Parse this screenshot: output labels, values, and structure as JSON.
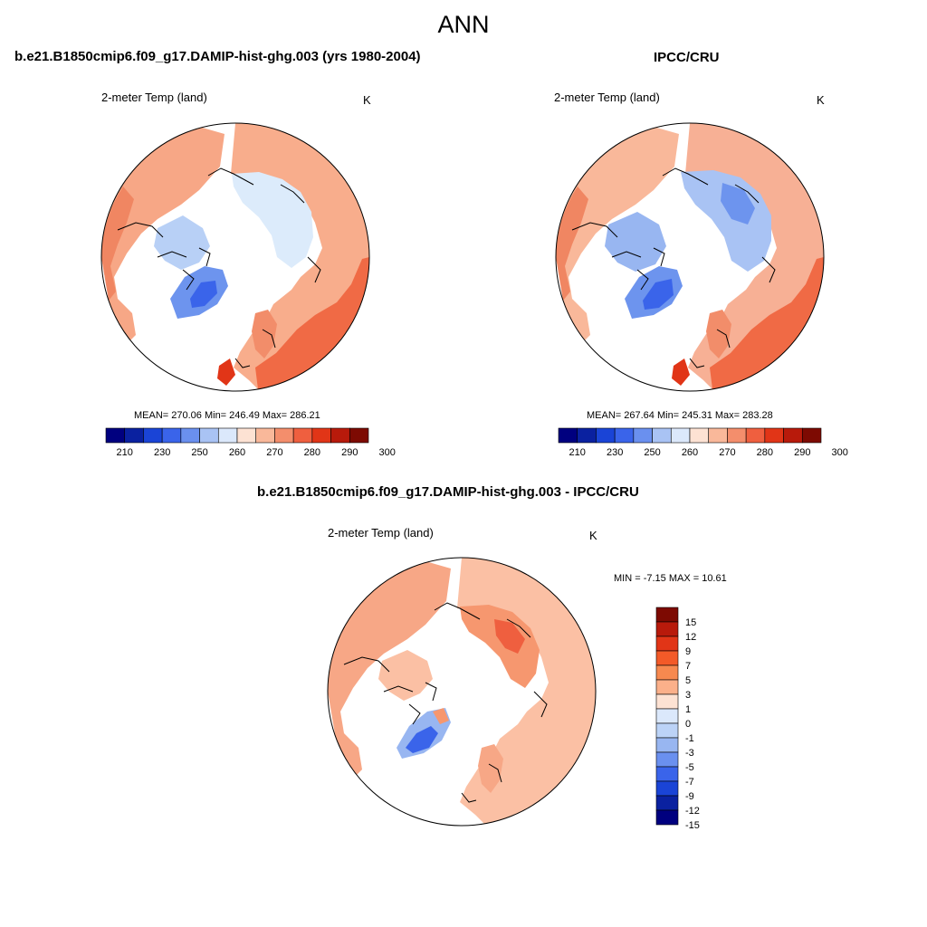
{
  "figure": {
    "title": "ANN"
  },
  "panels": {
    "model": {
      "title": "b.e21.B1850cmip6.f09_g17.DAMIP-hist-ghg.003 (yrs 1980-2004)",
      "variable": "2-meter Temp (land)",
      "units": "K",
      "stats": "MEAN= 270.06  Min= 246.49  Max= 286.21"
    },
    "obs": {
      "title": "IPCC/CRU",
      "variable": "2-meter Temp (land)",
      "units": "K",
      "stats": "MEAN= 267.64  Min= 245.31  Max= 283.28"
    },
    "diff": {
      "title": "b.e21.B1850cmip6.f09_g17.DAMIP-hist-ghg.003 - IPCC/CRU",
      "variable": "2-meter Temp (land)",
      "units": "K",
      "stats": "MIN =  -7.15 MAX =  10.61"
    }
  },
  "colorbars": {
    "abs": {
      "colors": [
        "#00007f",
        "#0a21a0",
        "#1a44d6",
        "#3a64ea",
        "#6a90ef",
        "#a9c3f4",
        "#dbe8fb",
        "#fde2d3",
        "#f9b89a",
        "#f48e6c",
        "#ef5f3f",
        "#e13517",
        "#b81a0b",
        "#7d0a02"
      ],
      "tick_labels": [
        "210",
        "230",
        "250",
        "260",
        "270",
        "280",
        "290",
        "300"
      ]
    },
    "diff": {
      "colors": [
        "#7d0a02",
        "#b81a0b",
        "#e13517",
        "#f35a28",
        "#f7894f",
        "#fbb08a",
        "#fde2d3",
        "#dbe8fb",
        "#bcd3f7",
        "#98b6f1",
        "#6a90ef",
        "#3a64ea",
        "#1a44d6",
        "#0a21a0",
        "#00007f"
      ],
      "tick_labels": [
        "15",
        "12",
        "9",
        "7",
        "5",
        "3",
        "1",
        "0",
        "-1",
        "-3",
        "-5",
        "-7",
        "-9",
        "-12",
        "-15"
      ]
    }
  }
}
